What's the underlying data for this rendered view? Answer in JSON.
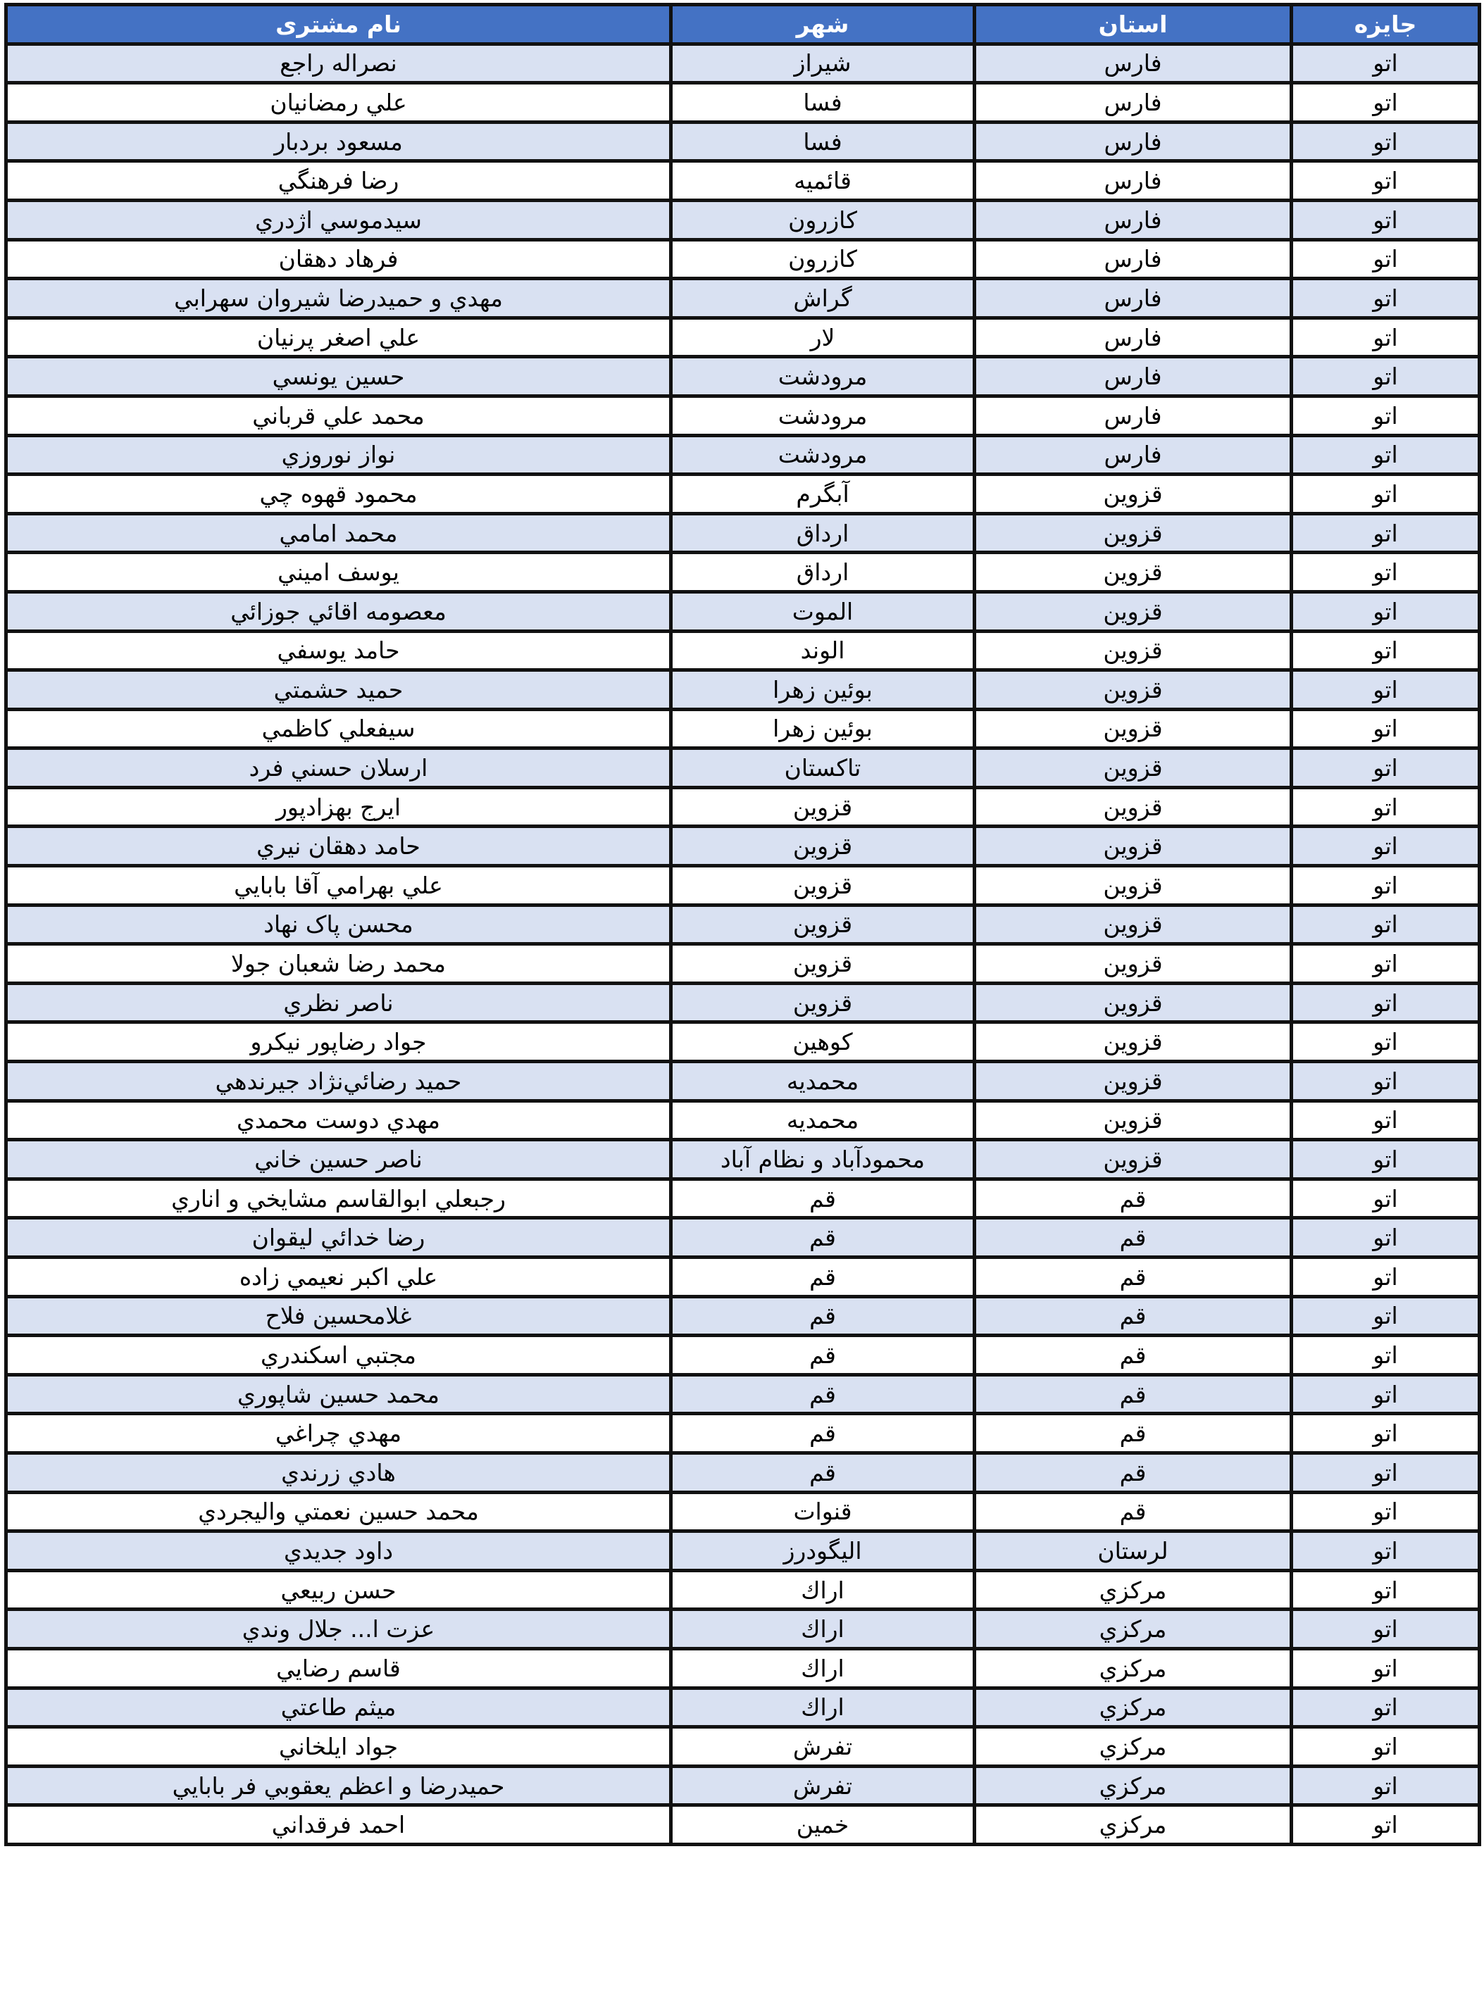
{
  "colors": {
    "header_bg": "#4472C4",
    "stripe": "#D9E1F2",
    "header_text": "#FFFFFF"
  },
  "headers": {
    "prize": "جایزه",
    "province": "استان",
    "city": "شهر",
    "name": "نام مشتری"
  },
  "rows": [
    {
      "prize": "اتو",
      "province": "فارس",
      "city": "شيراز",
      "name": "نصراله راجع"
    },
    {
      "prize": "اتو",
      "province": "فارس",
      "city": "فسا",
      "name": "علي رمضانيان"
    },
    {
      "prize": "اتو",
      "province": "فارس",
      "city": "فسا",
      "name": "مسعود بردبار"
    },
    {
      "prize": "اتو",
      "province": "فارس",
      "city": "قائميه",
      "name": "رضا فرهنگي"
    },
    {
      "prize": "اتو",
      "province": "فارس",
      "city": "كازرون",
      "name": "سيدموسي اژدري"
    },
    {
      "prize": "اتو",
      "province": "فارس",
      "city": "كازرون",
      "name": "فرهاد دهقان"
    },
    {
      "prize": "اتو",
      "province": "فارس",
      "city": "گراش",
      "name": "مهدي و حميدرضا شيروان سهرابي"
    },
    {
      "prize": "اتو",
      "province": "فارس",
      "city": "لار",
      "name": "علي اصغر پرنيان"
    },
    {
      "prize": "اتو",
      "province": "فارس",
      "city": "مرودشت",
      "name": "حسين يونسي"
    },
    {
      "prize": "اتو",
      "province": "فارس",
      "city": "مرودشت",
      "name": "محمد علي قرباني"
    },
    {
      "prize": "اتو",
      "province": "فارس",
      "city": "مرودشت",
      "name": "نواز نوروزي"
    },
    {
      "prize": "اتو",
      "province": "قزوين",
      "city": "آبگرم",
      "name": "محمود قهوه چي"
    },
    {
      "prize": "اتو",
      "province": "قزوين",
      "city": "ارداق",
      "name": "محمد امامي"
    },
    {
      "prize": "اتو",
      "province": "قزوين",
      "city": "ارداق",
      "name": "يوسف اميني"
    },
    {
      "prize": "اتو",
      "province": "قزوين",
      "city": "الموت",
      "name": "معصومه اقائي جوزائي"
    },
    {
      "prize": "اتو",
      "province": "قزوين",
      "city": "الوند",
      "name": "حامد يوسفي"
    },
    {
      "prize": "اتو",
      "province": "قزوين",
      "city": "بوئين زهرا",
      "name": "حميد حشمتي"
    },
    {
      "prize": "اتو",
      "province": "قزوين",
      "city": "بوئين زهرا",
      "name": "سيفعلي كاظمي"
    },
    {
      "prize": "اتو",
      "province": "قزوين",
      "city": "تاكستان",
      "name": "ارسلان حسني فرد"
    },
    {
      "prize": "اتو",
      "province": "قزوين",
      "city": "قزوين",
      "name": "ايرج بهزادپور"
    },
    {
      "prize": "اتو",
      "province": "قزوين",
      "city": "قزوين",
      "name": "حامد دهقان نيري"
    },
    {
      "prize": "اتو",
      "province": "قزوين",
      "city": "قزوين",
      "name": "علي بهرامي آقا بابايي"
    },
    {
      "prize": "اتو",
      "province": "قزوين",
      "city": "قزوين",
      "name": "محسن پاک نهاد"
    },
    {
      "prize": "اتو",
      "province": "قزوين",
      "city": "قزوين",
      "name": "محمد رضا شعبان جولا"
    },
    {
      "prize": "اتو",
      "province": "قزوين",
      "city": "قزوين",
      "name": "ناصر نظري"
    },
    {
      "prize": "اتو",
      "province": "قزوين",
      "city": "كوهين",
      "name": "جواد رضاپور نيكرو"
    },
    {
      "prize": "اتو",
      "province": "قزوين",
      "city": "محمديه",
      "name": "حميد رضائي‌نژاد جيرندهي"
    },
    {
      "prize": "اتو",
      "province": "قزوين",
      "city": "محمديه",
      "name": "مهدي دوست محمدي"
    },
    {
      "prize": "اتو",
      "province": "قزوين",
      "city": "محمودآباد و نظام آباد",
      "name": "ناصر حسين خاني"
    },
    {
      "prize": "اتو",
      "province": "قم",
      "city": "قم",
      "name": "رجبعلي ابوالقاسم مشايخي و اناري"
    },
    {
      "prize": "اتو",
      "province": "قم",
      "city": "قم",
      "name": "رضا خدائي ليقوان"
    },
    {
      "prize": "اتو",
      "province": "قم",
      "city": "قم",
      "name": "علي اكبر نعيمي زاده"
    },
    {
      "prize": "اتو",
      "province": "قم",
      "city": "قم",
      "name": "غلامحسين فلاح"
    },
    {
      "prize": "اتو",
      "province": "قم",
      "city": "قم",
      "name": "مجتبي اسكندري"
    },
    {
      "prize": "اتو",
      "province": "قم",
      "city": "قم",
      "name": "محمد حسين شاپوري"
    },
    {
      "prize": "اتو",
      "province": "قم",
      "city": "قم",
      "name": "مهدي چراغي"
    },
    {
      "prize": "اتو",
      "province": "قم",
      "city": "قم",
      "name": "هادي زرندي"
    },
    {
      "prize": "اتو",
      "province": "قم",
      "city": "قنوات",
      "name": "محمد حسين نعمتي واليجردي"
    },
    {
      "prize": "اتو",
      "province": "لرستان",
      "city": "اليگودرز",
      "name": "داود جديدي"
    },
    {
      "prize": "اتو",
      "province": "مركزي",
      "city": "اراك",
      "name": "حسن ربيعي"
    },
    {
      "prize": "اتو",
      "province": "مركزي",
      "city": "اراك",
      "name": "عزت ا... جلال وندي"
    },
    {
      "prize": "اتو",
      "province": "مركزي",
      "city": "اراك",
      "name": "قاسم رضايي"
    },
    {
      "prize": "اتو",
      "province": "مركزي",
      "city": "اراك",
      "name": "ميثم طاعتي"
    },
    {
      "prize": "اتو",
      "province": "مركزي",
      "city": "تفرش",
      "name": "جواد ايلخاني"
    },
    {
      "prize": "اتو",
      "province": "مركزي",
      "city": "تفرش",
      "name": "حميدرضا و اعظم يعقوبي فر بابايي"
    },
    {
      "prize": "اتو",
      "province": "مركزي",
      "city": "خمين",
      "name": "احمد فرقداني"
    }
  ]
}
